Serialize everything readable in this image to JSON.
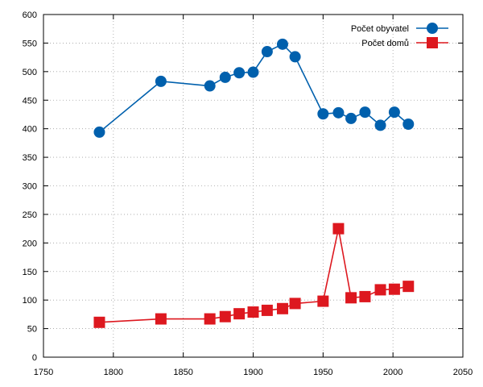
{
  "chart_data": {
    "type": "line",
    "title": "",
    "xlabel": "",
    "ylabel": "",
    "xlim": [
      1750,
      2050
    ],
    "ylim": [
      0,
      600
    ],
    "x_ticks": [
      1750,
      1800,
      1850,
      1900,
      1950,
      2000,
      2050
    ],
    "y_ticks": [
      0,
      50,
      100,
      150,
      200,
      250,
      300,
      350,
      400,
      450,
      500,
      550,
      600
    ],
    "grid": true,
    "legend_position": "top-right",
    "series": [
      {
        "name": "Počet obyvatel",
        "color": "#0060ad",
        "marker": "circle",
        "x": [
          1790,
          1834,
          1869,
          1880,
          1890,
          1900,
          1910,
          1921,
          1930,
          1950,
          1961,
          1970,
          1980,
          1991,
          2001,
          2011
        ],
        "y": [
          394,
          483,
          475,
          490,
          498,
          499,
          535,
          548,
          526,
          426,
          428,
          418,
          429,
          406,
          429,
          408
        ]
      },
      {
        "name": "Počet domů",
        "color": "#dd181f",
        "marker": "square",
        "x": [
          1790,
          1834,
          1869,
          1880,
          1890,
          1900,
          1910,
          1921,
          1930,
          1950,
          1961,
          1970,
          1980,
          1991,
          2001,
          2011
        ],
        "y": [
          61,
          67,
          67,
          71,
          76,
          79,
          82,
          85,
          94,
          98,
          225,
          104,
          106,
          118,
          119,
          124
        ]
      }
    ]
  }
}
